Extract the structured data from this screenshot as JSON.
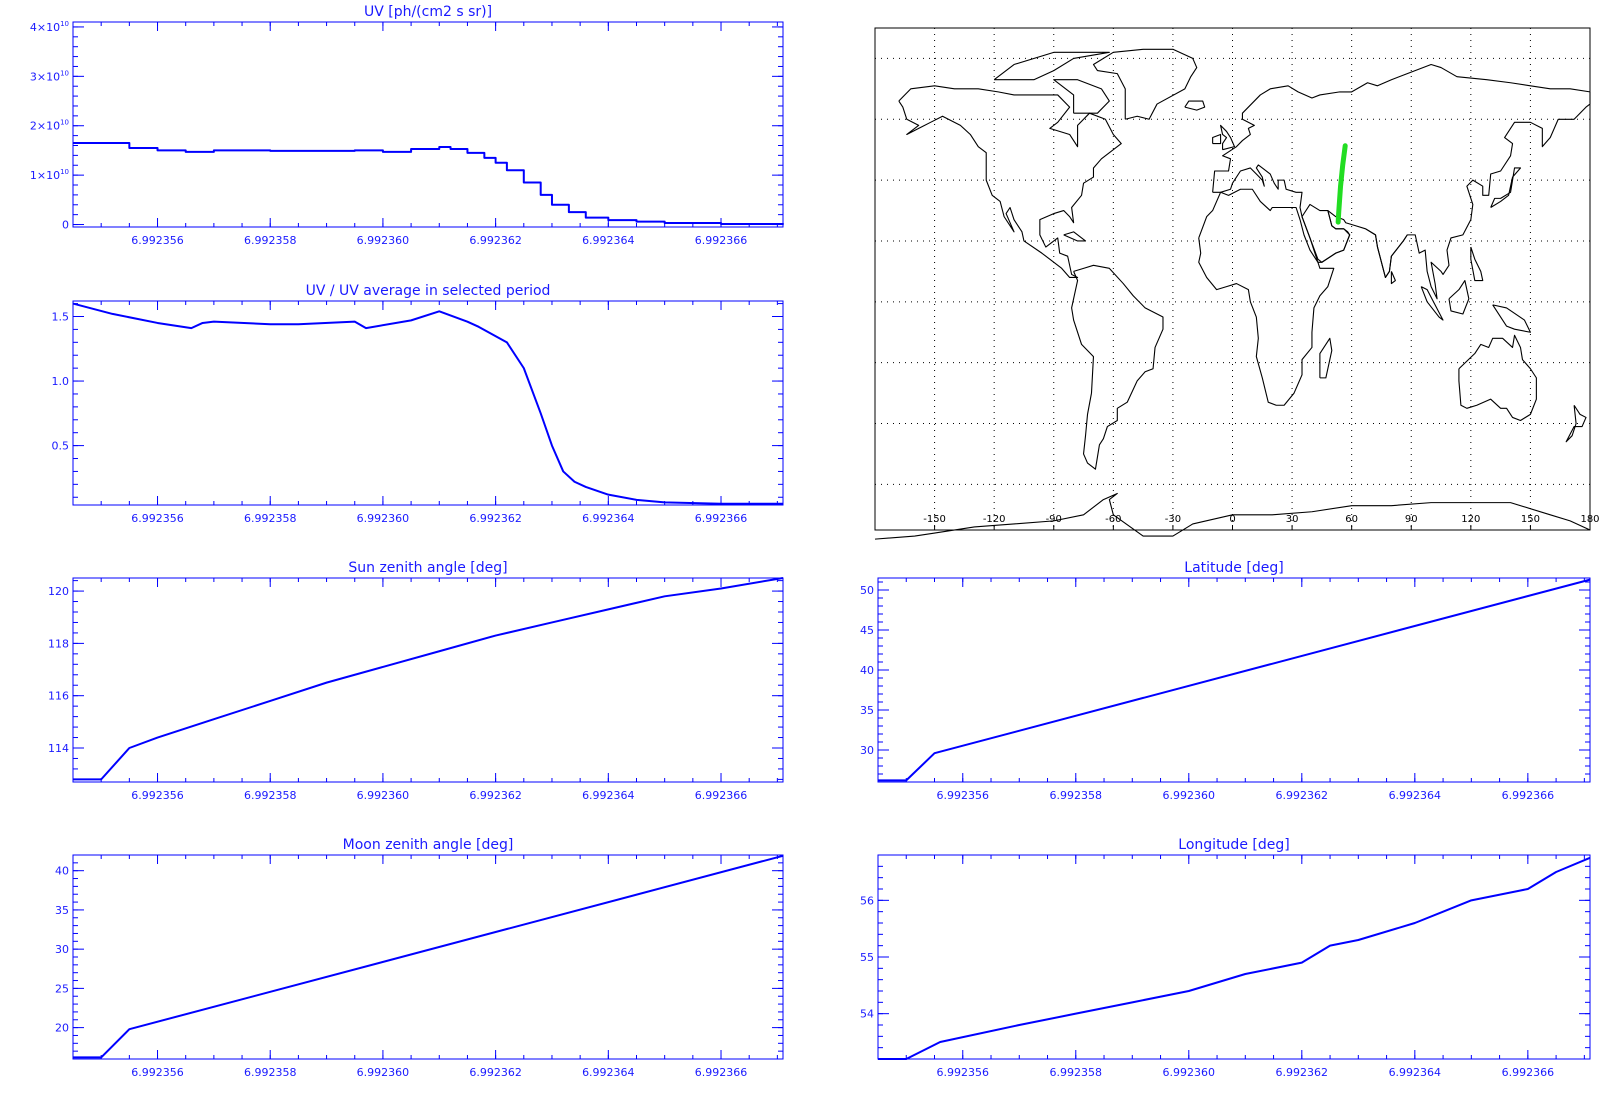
{
  "colors": {
    "plot": "#0000ff",
    "axis": "#0000ff",
    "map": "#000000",
    "track": "#22dd22"
  },
  "chart_data": [
    {
      "id": "uv",
      "type": "line",
      "title": "UV [ph/(cm2 s sr)]",
      "xlim": [
        6.9923545,
        6.9923671
      ],
      "ylim": [
        -500000000.0,
        41000000000.0
      ],
      "xticks": [
        6.992356,
        6.992358,
        6.99236,
        6.992362,
        6.992364,
        6.992366
      ],
      "xtick_labels": [
        "6.992356",
        "6.992358",
        "6.992360",
        "6.992362",
        "6.992364",
        "6.992366"
      ],
      "yticks": [
        0,
        10000000000.0,
        20000000000.0,
        30000000000.0,
        40000000000.0
      ],
      "ytick_labels": [
        {
          "base": "0",
          "exp": ""
        },
        {
          "base": "1×10",
          "exp": "10"
        },
        {
          "base": "2×10",
          "exp": "10"
        },
        {
          "base": "3×10",
          "exp": "10"
        },
        {
          "base": "4×10",
          "exp": "10"
        }
      ],
      "step": true,
      "x": [
        6.9923545,
        6.9923555,
        6.992356,
        6.9923565,
        6.992357,
        6.992358,
        6.992359,
        6.9923595,
        6.99236,
        6.9923605,
        6.992361,
        6.9923612,
        6.9923615,
        6.9923618,
        6.992362,
        6.9923622,
        6.9923625,
        6.9923628,
        6.992363,
        6.9923633,
        6.9923636,
        6.992364,
        6.9923645,
        6.992365,
        6.992366,
        6.9923671
      ],
      "y": [
        16500000000.0,
        15500000000.0,
        15000000000.0,
        14700000000.0,
        15000000000.0,
        14900000000.0,
        14900000000.0,
        15000000000.0,
        14700000000.0,
        15300000000.0,
        15700000000.0,
        15300000000.0,
        14500000000.0,
        13500000000.0,
        12500000000.0,
        11000000000.0,
        8500000000.0,
        6000000000.0,
        4000000000.0,
        2500000000.0,
        1400000000.0,
        900000000.0,
        600000000.0,
        300000000.0,
        100000000.0,
        0.0
      ]
    },
    {
      "id": "uv_ratio",
      "type": "line",
      "title": "UV / UV average in selected period",
      "xlim": [
        6.9923545,
        6.9923671
      ],
      "ylim": [
        0.04,
        1.62
      ],
      "xticks": [
        6.992356,
        6.992358,
        6.99236,
        6.992362,
        6.992364,
        6.992366
      ],
      "xtick_labels": [
        "6.992356",
        "6.992358",
        "6.992360",
        "6.992362",
        "6.992364",
        "6.992366"
      ],
      "yticks": [
        0.5,
        1.0,
        1.5
      ],
      "ytick_labels": [
        "0.5",
        "1.0",
        "1.5"
      ],
      "x": [
        6.9923545,
        6.9923552,
        6.992356,
        6.9923566,
        6.9923568,
        6.992357,
        6.992358,
        6.9923585,
        6.9923595,
        6.9923597,
        6.9923605,
        6.992361,
        6.9923615,
        6.9923617,
        6.9923622,
        6.9923625,
        6.9923628,
        6.992363,
        6.9923632,
        6.9923634,
        6.9923636,
        6.992364,
        6.9923645,
        6.992365,
        6.992366,
        6.9923671
      ],
      "y": [
        1.6,
        1.52,
        1.45,
        1.41,
        1.45,
        1.46,
        1.44,
        1.44,
        1.46,
        1.41,
        1.47,
        1.54,
        1.46,
        1.42,
        1.3,
        1.1,
        0.75,
        0.5,
        0.3,
        0.22,
        0.18,
        0.12,
        0.08,
        0.06,
        0.05,
        0.05
      ]
    },
    {
      "id": "sun_zenith",
      "type": "line",
      "title": "Sun zenith angle [deg]",
      "xlim": [
        6.9923545,
        6.9923671
      ],
      "ylim": [
        112.7,
        120.5
      ],
      "xticks": [
        6.992356,
        6.992358,
        6.99236,
        6.992362,
        6.992364,
        6.992366
      ],
      "xtick_labels": [
        "6.992356",
        "6.992358",
        "6.992360",
        "6.992362",
        "6.992364",
        "6.992366"
      ],
      "yticks": [
        114,
        116,
        118,
        120
      ],
      "ytick_labels": [
        "114",
        "116",
        "118",
        "120"
      ],
      "x": [
        6.9923545,
        6.992355,
        6.9923555,
        6.992356,
        6.992357,
        6.992358,
        6.992359,
        6.99236,
        6.992361,
        6.992362,
        6.992363,
        6.992364,
        6.992365,
        6.992366,
        6.9923671
      ],
      "y": [
        112.8,
        112.8,
        114.0,
        114.4,
        115.1,
        115.8,
        116.5,
        117.1,
        117.7,
        118.3,
        118.8,
        119.3,
        119.8,
        120.1,
        120.5
      ]
    },
    {
      "id": "latitude",
      "type": "line",
      "title": "Latitude [deg]",
      "xlim": [
        6.9923545,
        6.9923671
      ],
      "ylim": [
        26,
        51.5
      ],
      "xticks": [
        6.992356,
        6.992358,
        6.99236,
        6.992362,
        6.992364,
        6.992366
      ],
      "xtick_labels": [
        "6.992356",
        "6.992358",
        "6.992360",
        "6.992362",
        "6.992364",
        "6.992366"
      ],
      "yticks": [
        30,
        35,
        40,
        45,
        50
      ],
      "ytick_labels": [
        "30",
        "35",
        "40",
        "45",
        "50"
      ],
      "x": [
        6.9923545,
        6.992355,
        6.9923555,
        6.9923671
      ],
      "y": [
        26.2,
        26.2,
        29.6,
        51.3
      ]
    },
    {
      "id": "moon_zenith",
      "type": "line",
      "title": "Moon zenith angle [deg]",
      "xlim": [
        6.9923545,
        6.9923671
      ],
      "ylim": [
        16,
        42
      ],
      "xticks": [
        6.992356,
        6.992358,
        6.99236,
        6.992362,
        6.992364,
        6.992366
      ],
      "xtick_labels": [
        "6.992356",
        "6.992358",
        "6.992360",
        "6.992362",
        "6.992364",
        "6.992366"
      ],
      "yticks": [
        20,
        25,
        30,
        35,
        40
      ],
      "ytick_labels": [
        "20",
        "25",
        "30",
        "35",
        "40"
      ],
      "x": [
        6.9923545,
        6.992355,
        6.9923555,
        6.9923671
      ],
      "y": [
        16.2,
        16.2,
        19.8,
        41.9
      ]
    },
    {
      "id": "longitude",
      "type": "line",
      "title": "Longitude [deg]",
      "xlim": [
        6.9923545,
        6.9923671
      ],
      "ylim": [
        53.2,
        56.8
      ],
      "xticks": [
        6.992356,
        6.992358,
        6.99236,
        6.992362,
        6.992364,
        6.992366
      ],
      "xtick_labels": [
        "6.992356",
        "6.992358",
        "6.992360",
        "6.992362",
        "6.992364",
        "6.992366"
      ],
      "yticks": [
        54,
        55,
        56
      ],
      "ytick_labels": [
        "54",
        "55",
        "56"
      ],
      "x": [
        6.9923545,
        6.992355,
        6.9923556,
        6.992357,
        6.992358,
        6.992359,
        6.99236,
        6.992361,
        6.992362,
        6.9923625,
        6.992363,
        6.992364,
        6.9923645,
        6.992365,
        6.992366,
        6.9923665,
        6.9923671
      ],
      "y": [
        53.2,
        53.2,
        53.5,
        53.8,
        54.0,
        54.2,
        54.4,
        54.7,
        54.9,
        55.2,
        55.3,
        55.6,
        55.8,
        56.0,
        56.2,
        56.5,
        56.75
      ]
    }
  ],
  "map": {
    "type": "map",
    "xlim": [
      -180,
      180
    ],
    "ylim": [
      -75,
      90
    ],
    "xticks": [
      -150,
      -120,
      -90,
      -60,
      -30,
      0,
      30,
      60,
      90,
      120,
      150,
      180
    ],
    "xtick_labels": [
      "-150",
      "-120",
      "-90",
      "-60",
      "-30",
      "0",
      "30",
      "60",
      "90",
      "120",
      "150",
      "180"
    ],
    "track": [
      [
        53.2,
        26.2
      ],
      [
        53.5,
        29.6
      ],
      [
        54.4,
        38.0
      ],
      [
        55.5,
        45.0
      ],
      [
        56.75,
        51.3
      ]
    ]
  }
}
